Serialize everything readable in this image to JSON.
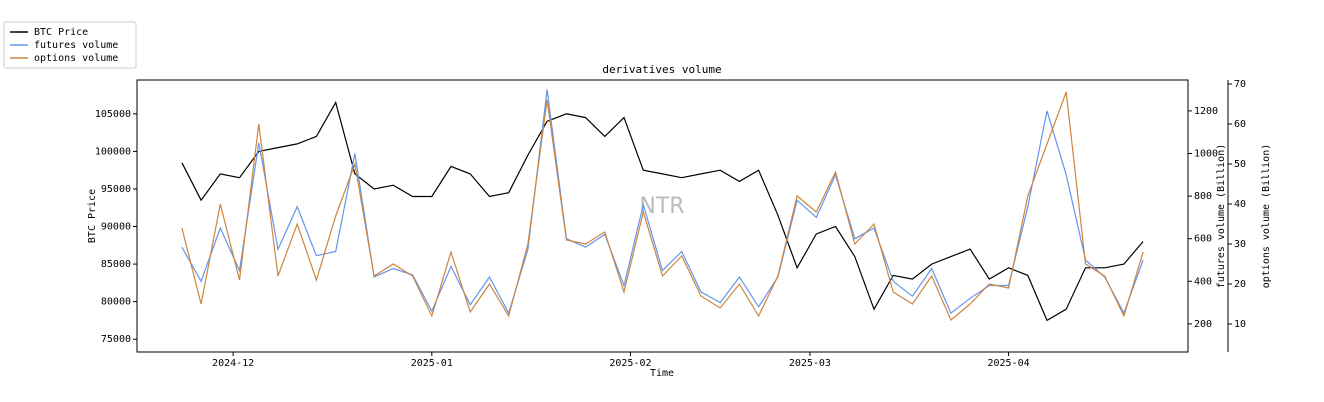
{
  "chart_data": {
    "type": "line",
    "title": "derivatives volume",
    "xlabel": "Time",
    "ylabel": "BTC Price",
    "y2label": "futures volume (Billion)",
    "y3label": "options volume (Billion)",
    "watermark": "NTR",
    "legend": "upper left",
    "x": [
      "2024-11-23",
      "2024-11-26",
      "2024-11-29",
      "2024-12-02",
      "2024-12-05",
      "2024-12-08",
      "2024-12-11",
      "2024-12-14",
      "2024-12-17",
      "2024-12-20",
      "2024-12-23",
      "2024-12-26",
      "2024-12-29",
      "2025-01-01",
      "2025-01-04",
      "2025-01-07",
      "2025-01-10",
      "2025-01-13",
      "2025-01-16",
      "2025-01-19",
      "2025-01-22",
      "2025-01-25",
      "2025-01-28",
      "2025-01-31",
      "2025-02-03",
      "2025-02-06",
      "2025-02-09",
      "2025-02-12",
      "2025-02-15",
      "2025-02-18",
      "2025-02-21",
      "2025-02-24",
      "2025-02-27",
      "2025-03-02",
      "2025-03-05",
      "2025-03-08",
      "2025-03-11",
      "2025-03-14",
      "2025-03-17",
      "2025-03-20",
      "2025-03-23",
      "2025-03-26",
      "2025-03-29",
      "2025-04-01",
      "2025-04-04",
      "2025-04-07",
      "2025-04-10",
      "2025-04-13",
      "2025-04-16",
      "2025-04-19",
      "2025-04-22"
    ],
    "series": [
      {
        "name": "BTC Price",
        "color": "#000000",
        "axis": "y",
        "values": [
          98500,
          93500,
          97000,
          96500,
          100000,
          100500,
          101000,
          102000,
          106500,
          97000,
          95000,
          95500,
          94000,
          94000,
          98000,
          97000,
          94000,
          94500,
          99500,
          104000,
          105000,
          104500,
          102000,
          104500,
          97500,
          97000,
          96500,
          97000,
          97500,
          96000,
          97500,
          91500,
          84500,
          89000,
          90000,
          86000,
          79000,
          83500,
          83000,
          85000,
          86000,
          87000,
          83000,
          84500,
          83500,
          77500,
          79000,
          84500,
          84500,
          85000,
          88000
        ]
      },
      {
        "name": "futures volume",
        "color": "#6495ed",
        "axis": "y2",
        "values": [
          560,
          400,
          650,
          450,
          1050,
          550,
          750,
          520,
          540,
          1000,
          420,
          460,
          430,
          260,
          470,
          290,
          420,
          250,
          550,
          1300,
          600,
          560,
          620,
          380,
          760,
          450,
          540,
          350,
          300,
          420,
          280,
          420,
          780,
          700,
          900,
          600,
          650,
          400,
          330,
          460,
          250,
          320,
          380,
          380,
          750,
          1200,
          900,
          500,
          420,
          250,
          500
        ]
      },
      {
        "name": "options volume",
        "color": "#cd853f",
        "axis": "y3",
        "values": [
          34,
          15,
          40,
          21,
          60,
          22,
          35,
          21,
          37,
          50,
          22,
          25,
          22,
          12,
          28,
          13,
          20,
          12,
          30,
          66,
          31,
          30,
          33,
          18,
          38,
          22,
          27,
          17,
          14,
          20,
          12,
          22,
          42,
          38,
          48,
          30,
          35,
          18,
          15,
          22,
          11,
          15,
          20,
          19,
          42,
          55,
          68,
          25,
          22,
          12,
          28
        ]
      }
    ],
    "xlim": [
      "2024-11-16",
      "2025-04-29"
    ],
    "xticks": [
      {
        "value": "2024-12-01",
        "label": "2024-12"
      },
      {
        "value": "2025-01-01",
        "label": "2025-01"
      },
      {
        "value": "2025-02-01",
        "label": "2025-02"
      },
      {
        "value": "2025-03-01",
        "label": "2025-03"
      },
      {
        "value": "2025-04-01",
        "label": "2025-04"
      }
    ],
    "ylim": [
      73300,
      109500
    ],
    "yticks": [
      75000,
      80000,
      85000,
      90000,
      95000,
      100000,
      105000
    ],
    "y2lim": [
      68,
      1345
    ],
    "y2ticks": [
      200,
      400,
      600,
      800,
      1000,
      1200
    ],
    "y3lim": [
      3,
      71
    ],
    "y3ticks": [
      10,
      20,
      30,
      40,
      50,
      60,
      70
    ]
  }
}
